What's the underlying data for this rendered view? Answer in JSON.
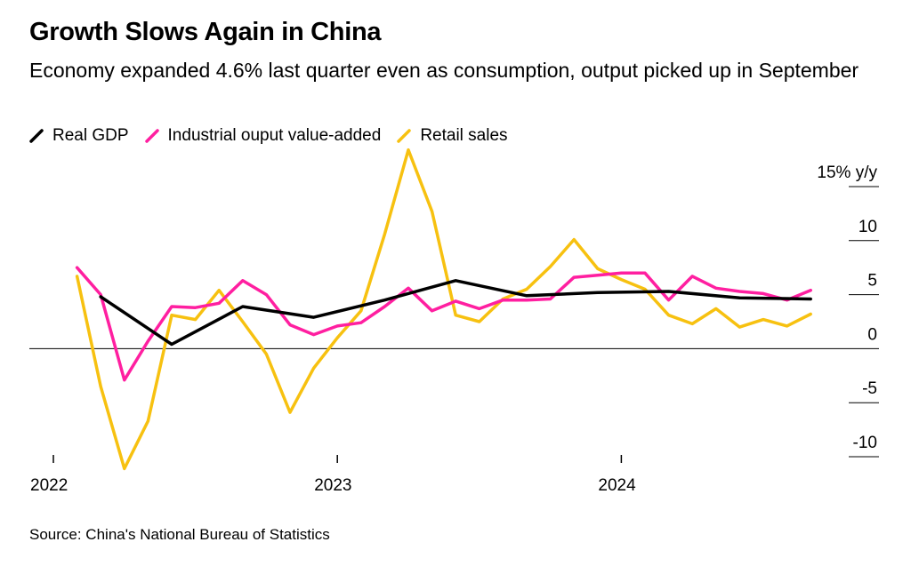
{
  "title": "Growth Slows Again in China",
  "subtitle": "Economy expanded 4.6% last quarter even as consumption, output picked up in September",
  "source": "Source: China's National Bureau of Statistics",
  "chart_data": {
    "type": "line",
    "ylim": [
      -10,
      15
    ],
    "y_ticks": [
      {
        "value": 15,
        "label": "15% y/y"
      },
      {
        "value": 10,
        "label": "10"
      },
      {
        "value": 5,
        "label": "5"
      },
      {
        "value": 0,
        "label": "0"
      },
      {
        "value": -5,
        "label": "-5"
      },
      {
        "value": -10,
        "label": "-10"
      }
    ],
    "x_ticks": [
      {
        "value": "2022-01",
        "label": "2022"
      },
      {
        "value": "2023-01",
        "label": "2023"
      },
      {
        "value": "2024-01",
        "label": "2024"
      }
    ],
    "xlim": [
      "2022-01",
      "2024-10"
    ],
    "legend_position": "top-left",
    "series": [
      {
        "name": "Real GDP",
        "color": "#000000",
        "points": [
          {
            "x": "2022-03",
            "y": 4.8
          },
          {
            "x": "2022-06",
            "y": 0.4
          },
          {
            "x": "2022-09",
            "y": 3.9
          },
          {
            "x": "2022-12",
            "y": 2.9
          },
          {
            "x": "2023-03",
            "y": 4.5
          },
          {
            "x": "2023-06",
            "y": 6.3
          },
          {
            "x": "2023-09",
            "y": 4.9
          },
          {
            "x": "2023-12",
            "y": 5.2
          },
          {
            "x": "2024-03",
            "y": 5.3
          },
          {
            "x": "2024-06",
            "y": 4.7
          },
          {
            "x": "2024-09",
            "y": 4.6
          }
        ]
      },
      {
        "name": "Industrial ouput value-added",
        "color": "#ff1fa0",
        "points": [
          {
            "x": "2022-02",
            "y": 7.5
          },
          {
            "x": "2022-03",
            "y": 5.0
          },
          {
            "x": "2022-04",
            "y": -2.9
          },
          {
            "x": "2022-05",
            "y": 0.7
          },
          {
            "x": "2022-06",
            "y": 3.9
          },
          {
            "x": "2022-07",
            "y": 3.8
          },
          {
            "x": "2022-08",
            "y": 4.2
          },
          {
            "x": "2022-09",
            "y": 6.3
          },
          {
            "x": "2022-10",
            "y": 5.0
          },
          {
            "x": "2022-11",
            "y": 2.2
          },
          {
            "x": "2022-12",
            "y": 1.3
          },
          {
            "x": "2023-01",
            "y": 2.1
          },
          {
            "x": "2023-02",
            "y": 2.4
          },
          {
            "x": "2023-03",
            "y": 3.9
          },
          {
            "x": "2023-04",
            "y": 5.6
          },
          {
            "x": "2023-05",
            "y": 3.5
          },
          {
            "x": "2023-06",
            "y": 4.4
          },
          {
            "x": "2023-07",
            "y": 3.7
          },
          {
            "x": "2023-08",
            "y": 4.5
          },
          {
            "x": "2023-09",
            "y": 4.5
          },
          {
            "x": "2023-10",
            "y": 4.6
          },
          {
            "x": "2023-11",
            "y": 6.6
          },
          {
            "x": "2023-12",
            "y": 6.8
          },
          {
            "x": "2024-01",
            "y": 7.0
          },
          {
            "x": "2024-02",
            "y": 7.0
          },
          {
            "x": "2024-03",
            "y": 4.5
          },
          {
            "x": "2024-04",
            "y": 6.7
          },
          {
            "x": "2024-05",
            "y": 5.6
          },
          {
            "x": "2024-06",
            "y": 5.3
          },
          {
            "x": "2024-07",
            "y": 5.1
          },
          {
            "x": "2024-08",
            "y": 4.5
          },
          {
            "x": "2024-09",
            "y": 5.4
          }
        ]
      },
      {
        "name": "Retail sales",
        "color": "#f7c110",
        "points": [
          {
            "x": "2022-02",
            "y": 6.7
          },
          {
            "x": "2022-03",
            "y": -3.5
          },
          {
            "x": "2022-04",
            "y": -11.1
          },
          {
            "x": "2022-05",
            "y": -6.7
          },
          {
            "x": "2022-06",
            "y": 3.1
          },
          {
            "x": "2022-07",
            "y": 2.7
          },
          {
            "x": "2022-08",
            "y": 5.4
          },
          {
            "x": "2022-09",
            "y": 2.5
          },
          {
            "x": "2022-10",
            "y": -0.5
          },
          {
            "x": "2022-11",
            "y": -5.9
          },
          {
            "x": "2022-12",
            "y": -1.8
          },
          {
            "x": "2023-01",
            "y": 1.0
          },
          {
            "x": "2023-02",
            "y": 3.5
          },
          {
            "x": "2023-03",
            "y": 10.6
          },
          {
            "x": "2023-04",
            "y": 18.4
          },
          {
            "x": "2023-05",
            "y": 12.7
          },
          {
            "x": "2023-06",
            "y": 3.1
          },
          {
            "x": "2023-07",
            "y": 2.5
          },
          {
            "x": "2023-08",
            "y": 4.6
          },
          {
            "x": "2023-09",
            "y": 5.5
          },
          {
            "x": "2023-10",
            "y": 7.6
          },
          {
            "x": "2023-11",
            "y": 10.1
          },
          {
            "x": "2023-12",
            "y": 7.4
          },
          {
            "x": "2024-01",
            "y": 6.4
          },
          {
            "x": "2024-02",
            "y": 5.5
          },
          {
            "x": "2024-03",
            "y": 3.1
          },
          {
            "x": "2024-04",
            "y": 2.3
          },
          {
            "x": "2024-05",
            "y": 3.7
          },
          {
            "x": "2024-06",
            "y": 2.0
          },
          {
            "x": "2024-07",
            "y": 2.7
          },
          {
            "x": "2024-08",
            "y": 2.1
          },
          {
            "x": "2024-09",
            "y": 3.2
          }
        ]
      }
    ]
  }
}
